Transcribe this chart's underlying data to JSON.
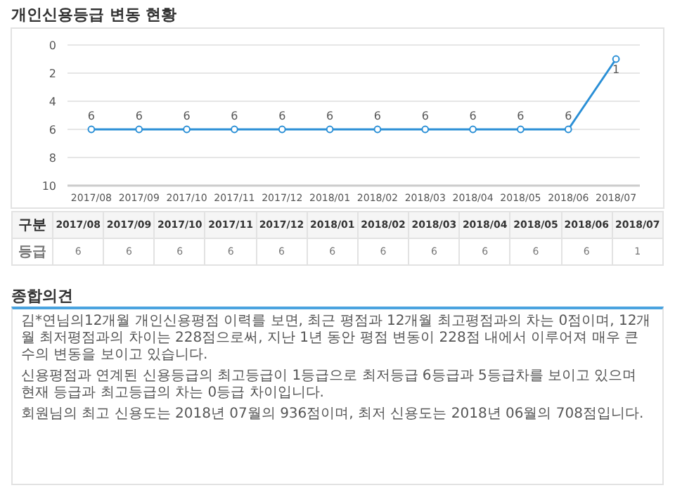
{
  "chart_data": [
    {
      "type": "line",
      "title": "개인신용등급 변동 현황",
      "categories": [
        "2017/08",
        "2017/09",
        "2017/10",
        "2017/11",
        "2017/12",
        "2018/01",
        "2018/02",
        "2018/03",
        "2018/04",
        "2018/05",
        "2018/06",
        "2018/07"
      ],
      "series": [
        {
          "color": "#2a8fd6",
          "values": [
            6,
            6,
            6,
            6,
            6,
            6,
            6,
            6,
            6,
            6,
            6,
            1
          ],
          "value_labels": [
            "6",
            "6",
            "6",
            "6",
            "6",
            "6",
            "6",
            "6",
            "6",
            "6",
            "6",
            "1"
          ]
        }
      ],
      "ylim": [
        10,
        0
      ],
      "yticks": [
        0,
        2,
        4,
        6,
        8,
        10
      ],
      "grid": "y",
      "marker": "circle"
    },
    {
      "type": "other",
      "categories": [
        "2017/08",
        "2017/09",
        "2017/10",
        "2017/11",
        "2017/12",
        "2018/01",
        "2018/02",
        "2018/03",
        "2018/04",
        "2018/05",
        "2018/06",
        "2018/07"
      ],
      "values": [
        6,
        6,
        6,
        6,
        6,
        6,
        6,
        6,
        6,
        6,
        6,
        1
      ],
      "data_labels": true,
      "annotations": [
        "구분",
        "등급"
      ]
    },
    {
      "type": "other",
      "title": "종합의견",
      "annotations": [
        "김*연님의12개월 개인신용평점 이력를 보면, 최근 평점과 12개월 최고평점과의 차는 0점이며, 12개월 최저평점과의 차이는 228점으로써, 지난 1년 동안 평점 변동이 228점 내에서 이루어져 매우 큰 수의 변동을 보이고 있습니다.",
        "신용평점과 연계된 신용등급의 최고등급이 1등급으로 최저등급 6등급과 5등급차를 보이고 있으며 현재 등급과 최고등급의 차는 0등급 차이입니다.",
        "회원님의 최고 신용도는 2018년 07월의 936점이며, 최저 신용도는 2018년 06월의 708점입니다."
      ]
    }
  ]
}
